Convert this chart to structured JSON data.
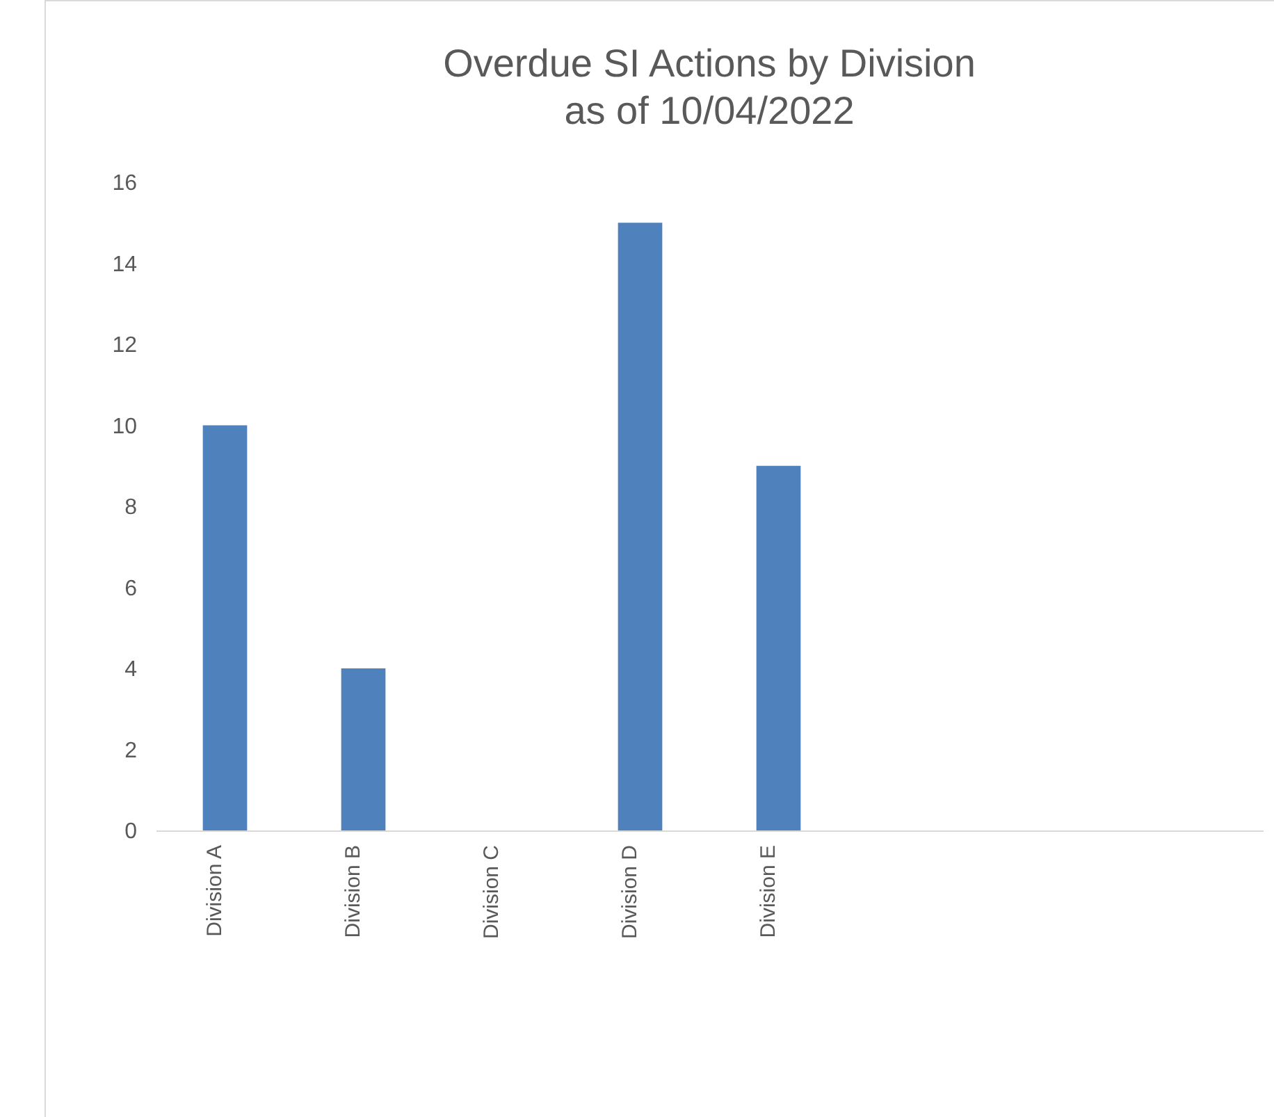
{
  "chart_data": {
    "type": "bar",
    "title": "Overdue SI Actions by Division\nas of 10/04/2022",
    "categories": [
      "Division A",
      "Division B",
      "Division C",
      "Division D",
      "Division E",
      null,
      null,
      null
    ],
    "values": [
      10,
      4,
      0,
      15,
      9,
      null,
      null,
      null
    ],
    "color": "#4f81bd",
    "ylim": [
      0,
      16
    ],
    "yticks": [
      0,
      2,
      4,
      6,
      8,
      10,
      12,
      14,
      16
    ],
    "grid": false
  }
}
